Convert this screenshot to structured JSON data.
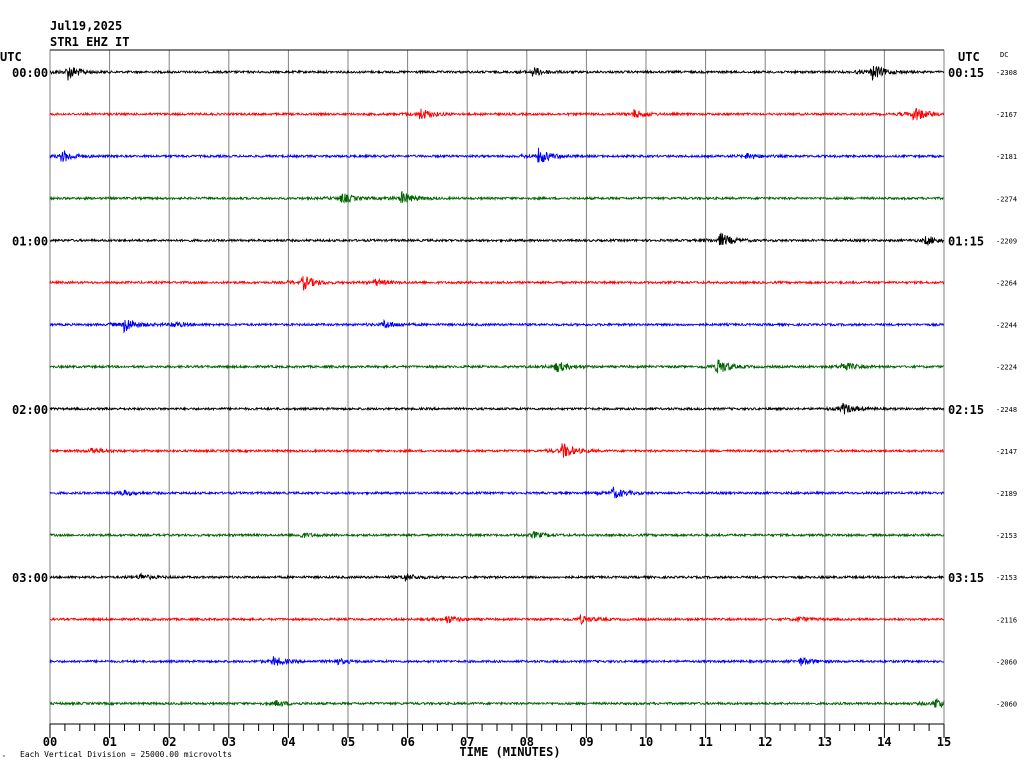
{
  "header": {
    "date": "Jul19,2025",
    "station": "STR1 EHZ IT"
  },
  "left_axis_title": "UTC",
  "right_axis_title": "UTC",
  "dc_title": "DC",
  "x_axis_title": "TIME (MINUTES)",
  "footer_note": "Each Vertical Division = 25000.00 microvolts",
  "colors": {
    "black": "#000000",
    "red": "#ff0000",
    "blue": "#0000ff",
    "green": "#006400",
    "grid": "#808080"
  },
  "chart_data": {
    "type": "line",
    "title": "Jul19,2025 STR1 EHZ IT",
    "xlabel": "TIME (MINUTES)",
    "xlim": [
      0,
      15
    ],
    "x_ticks": [
      "00",
      "01",
      "02",
      "03",
      "04",
      "05",
      "06",
      "07",
      "08",
      "09",
      "10",
      "11",
      "12",
      "13",
      "14",
      "15"
    ],
    "grid": true,
    "rows": [
      {
        "left_label": "00:00",
        "right_label": "00:15",
        "dc": "-2308",
        "color": "black",
        "events": [
          [
            0.3,
            5
          ],
          [
            8.1,
            3
          ],
          [
            13.8,
            5
          ]
        ]
      },
      {
        "left_label": "",
        "right_label": "",
        "dc": "-2167",
        "color": "red",
        "events": [
          [
            6.2,
            4
          ],
          [
            9.8,
            2.5
          ],
          [
            14.5,
            5
          ]
        ]
      },
      {
        "left_label": "",
        "right_label": "",
        "dc": "-2181",
        "color": "blue",
        "events": [
          [
            0.2,
            4
          ],
          [
            8.2,
            5
          ],
          [
            11.7,
            2
          ]
        ]
      },
      {
        "left_label": "",
        "right_label": "",
        "dc": "-2274",
        "color": "green",
        "events": [
          [
            4.9,
            3
          ],
          [
            5.9,
            4
          ]
        ]
      },
      {
        "left_label": "01:00",
        "right_label": "01:15",
        "dc": "-2209",
        "color": "black",
        "events": [
          [
            11.25,
            4.5
          ],
          [
            14.7,
            3
          ]
        ]
      },
      {
        "left_label": "",
        "right_label": "",
        "dc": "-2264",
        "color": "red",
        "events": [
          [
            4.25,
            4.5
          ],
          [
            5.45,
            2
          ]
        ]
      },
      {
        "left_label": "",
        "right_label": "",
        "dc": "-2244",
        "color": "blue",
        "events": [
          [
            1.25,
            5
          ],
          [
            2.05,
            1.8
          ],
          [
            5.6,
            2.5
          ]
        ]
      },
      {
        "left_label": "",
        "right_label": "",
        "dc": "-2224",
        "color": "green",
        "events": [
          [
            8.5,
            3.5
          ],
          [
            11.2,
            5
          ],
          [
            13.3,
            3
          ]
        ]
      },
      {
        "left_label": "02:00",
        "right_label": "02:15",
        "dc": "-2248",
        "color": "black",
        "events": [
          [
            13.3,
            3.5
          ]
        ]
      },
      {
        "left_label": "",
        "right_label": "",
        "dc": "-2147",
        "color": "red",
        "events": [
          [
            0.7,
            2
          ],
          [
            8.6,
            5
          ]
        ]
      },
      {
        "left_label": "",
        "right_label": "",
        "dc": "-2189",
        "color": "blue",
        "events": [
          [
            1.2,
            1.8
          ],
          [
            9.45,
            3.5
          ]
        ]
      },
      {
        "left_label": "",
        "right_label": "",
        "dc": "-2153",
        "color": "green",
        "events": [
          [
            4.2,
            1.5
          ],
          [
            8.1,
            2
          ]
        ]
      },
      {
        "left_label": "03:00",
        "right_label": "03:15",
        "dc": "-2153",
        "color": "black",
        "events": [
          [
            1.5,
            2
          ],
          [
            5.95,
            2.5
          ]
        ]
      },
      {
        "left_label": "",
        "right_label": "",
        "dc": "-2116",
        "color": "red",
        "events": [
          [
            6.65,
            2.5
          ],
          [
            8.9,
            2.5
          ],
          [
            12.55,
            1.5
          ]
        ]
      },
      {
        "left_label": "",
        "right_label": "",
        "dc": "-2060",
        "color": "blue",
        "events": [
          [
            3.75,
            3
          ],
          [
            4.8,
            1.8
          ],
          [
            12.6,
            2.5
          ]
        ]
      },
      {
        "left_label": "",
        "right_label": "",
        "dc": "-2060",
        "color": "green",
        "events": [
          [
            3.8,
            1.8
          ],
          [
            14.85,
            3.5
          ]
        ]
      }
    ]
  }
}
